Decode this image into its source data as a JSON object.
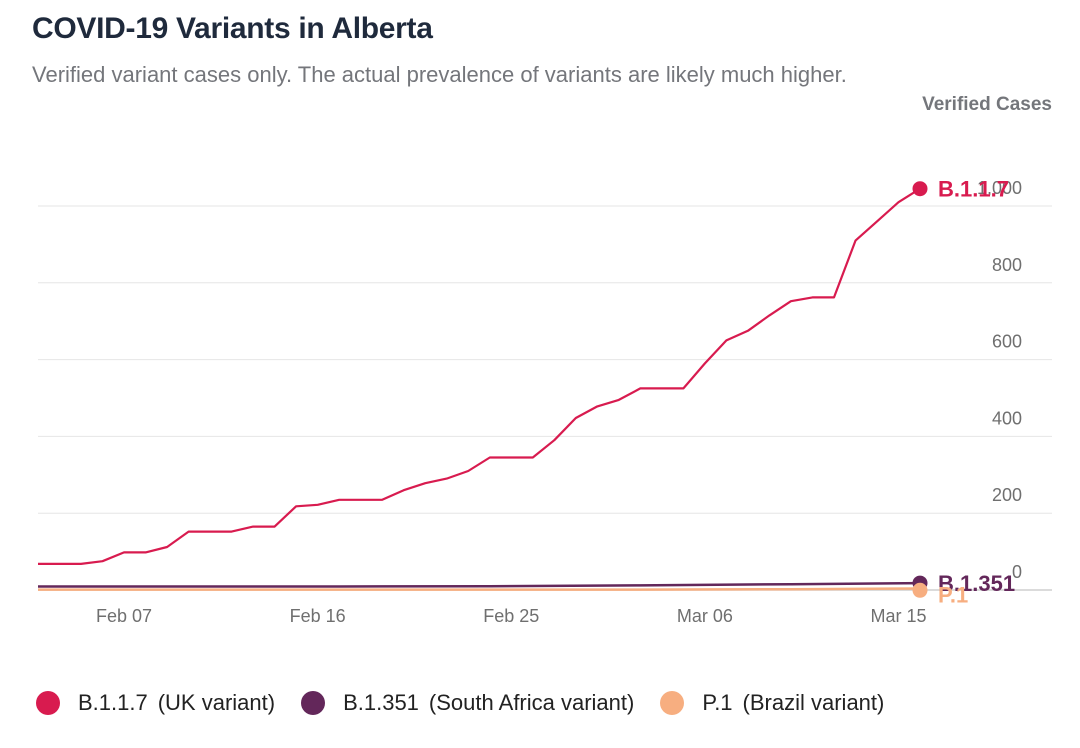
{
  "title": "COVID-19 Variants in Alberta",
  "subtitle": "Verified variant cases only. The actual prevalence of variants are likely much higher.",
  "chart_data": {
    "type": "line",
    "ylabel": "Verified Cases",
    "ylim": [
      0,
      1000
    ],
    "yticks": [
      0,
      200,
      400,
      600,
      800,
      1000
    ],
    "ytick_labels": [
      "0",
      "200",
      "400",
      "600",
      "800",
      "1,000"
    ],
    "xlim": [
      "2021-02-03",
      "2021-03-18"
    ],
    "xticks": [
      {
        "date": "2021-02-07",
        "label": "Feb 07"
      },
      {
        "date": "2021-02-16",
        "label": "Feb 16"
      },
      {
        "date": "2021-02-25",
        "label": "Feb 25"
      },
      {
        "date": "2021-03-06",
        "label": "Mar 06"
      },
      {
        "date": "2021-03-15",
        "label": "Mar 15"
      }
    ],
    "grid": true,
    "legend_position": "bottom",
    "series": [
      {
        "name": "B.1.1.7",
        "legend_label": "B.1.1.7",
        "legend_desc": "(UK variant)",
        "color": "#d81b4f",
        "end_label": "B.1.1.7",
        "x": [
          "2021-02-03",
          "2021-02-04",
          "2021-02-05",
          "2021-02-06",
          "2021-02-07",
          "2021-02-08",
          "2021-02-09",
          "2021-02-10",
          "2021-02-11",
          "2021-02-12",
          "2021-02-13",
          "2021-02-14",
          "2021-02-15",
          "2021-02-16",
          "2021-02-17",
          "2021-02-18",
          "2021-02-19",
          "2021-02-20",
          "2021-02-21",
          "2021-02-22",
          "2021-02-23",
          "2021-02-24",
          "2021-02-25",
          "2021-02-26",
          "2021-02-27",
          "2021-02-28",
          "2021-03-01",
          "2021-03-02",
          "2021-03-03",
          "2021-03-04",
          "2021-03-05",
          "2021-03-06",
          "2021-03-07",
          "2021-03-08",
          "2021-03-09",
          "2021-03-10",
          "2021-03-11",
          "2021-03-12",
          "2021-03-13",
          "2021-03-14",
          "2021-03-15",
          "2021-03-16"
        ],
        "values": [
          68,
          68,
          68,
          75,
          98,
          98,
          112,
          152,
          152,
          152,
          165,
          165,
          218,
          222,
          235,
          235,
          235,
          260,
          278,
          290,
          310,
          345,
          345,
          345,
          390,
          448,
          478,
          495,
          525,
          525,
          525,
          590,
          650,
          675,
          715,
          752,
          762,
          762,
          910,
          960,
          1010,
          1045
        ]
      },
      {
        "name": "B.1.351",
        "legend_label": "B.1.351",
        "legend_desc": "(South Africa variant)",
        "color": "#63275a",
        "end_label": "B.1.351",
        "x": [
          "2021-02-03",
          "2021-02-10",
          "2021-02-17",
          "2021-02-24",
          "2021-03-03",
          "2021-03-10",
          "2021-03-16"
        ],
        "values": [
          9,
          9,
          9,
          10,
          12,
          15,
          18
        ]
      },
      {
        "name": "P.1",
        "legend_label": "P.1",
        "legend_desc": "(Brazil variant)",
        "color": "#f7ae80",
        "end_label": "P.1",
        "x": [
          "2021-02-03",
          "2021-02-17",
          "2021-03-03",
          "2021-03-10",
          "2021-03-16"
        ],
        "values": [
          1,
          1,
          1,
          2,
          4
        ]
      }
    ]
  }
}
